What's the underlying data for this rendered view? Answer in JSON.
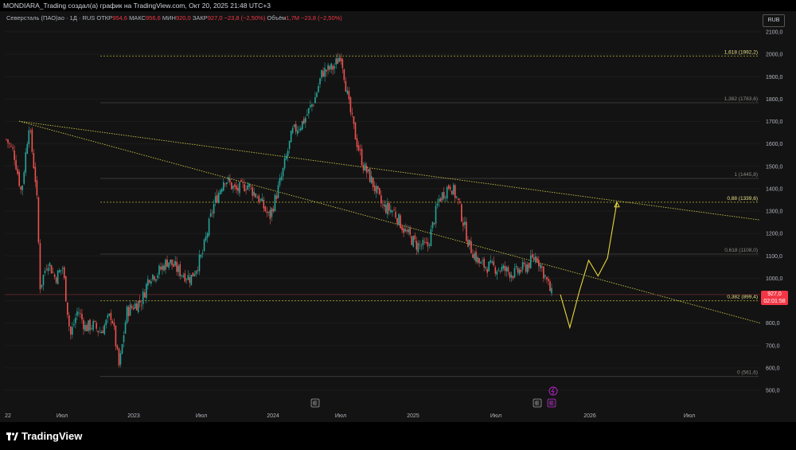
{
  "header": {
    "title": "MONDIARA_Trading создал(а) график на TradingView.com, Окт 20, 2025 21:48 UTC+3"
  },
  "legend": {
    "symbol": "Северсталь (ПАО)ао · 1Д · RUS",
    "open_label": "ОТКР",
    "open": "954,6",
    "high_label": "МАКС",
    "high": "956,6",
    "low_label": "МИН",
    "low": "920,0",
    "close_label": "ЗАКР",
    "close": "927,0",
    "change": "−23,8 (−2,50%)",
    "volume_label": "Объём",
    "volume": "1,7M",
    "volume_change": "−23,8 (−2,50%)"
  },
  "currency": "RUB",
  "price_tag": {
    "price": "927,0",
    "countdown": "02:01:58",
    "color": "#f23645"
  },
  "brand": "TradingView",
  "colors": {
    "background": "#131313",
    "up": "#26a69a",
    "down": "#ef5350",
    "fib_line": "#a4a27a",
    "trend": "#c8c24a",
    "forecast": "#e8d83a"
  },
  "chart_data": {
    "type": "candlestick",
    "price_axis": [
      "2100,0",
      "2000,0",
      "1900,0",
      "1800,0",
      "1700,0",
      "1600,0",
      "1500,0",
      "1400,0",
      "1300,0",
      "1200,0",
      "1100,0",
      "1000,0",
      "900,0",
      "800,0",
      "700,0",
      "600,0",
      "500,0"
    ],
    "time_axis": [
      "22",
      "Июл",
      "2023",
      "Июл",
      "2024",
      "Июл",
      "2025",
      "Июл",
      "2026",
      "Июл"
    ],
    "ylim": [
      470,
      2110
    ],
    "fib_levels": [
      {
        "ratio": "1,618",
        "price": 1992.2,
        "label": "1,618 (1992,2)",
        "highlight": true
      },
      {
        "ratio": "1,382",
        "price": 1783.6,
        "label": "1,382 (1783,6)",
        "highlight": false
      },
      {
        "ratio": "1",
        "price": 1445.8,
        "label": "1 (1445,8)",
        "highlight": false
      },
      {
        "ratio": "0,88",
        "price": 1339.6,
        "label": "0,88 (1339,6)",
        "highlight": true
      },
      {
        "ratio": "0,618",
        "price": 1108.0,
        "label": "0,618 (1108,0)",
        "highlight": false
      },
      {
        "ratio": "0,382",
        "price": 899.4,
        "label": "0,382 (899,4)",
        "highlight": true
      },
      {
        "ratio": "0",
        "price": 561.6,
        "label": "0 (561,6)",
        "highlight": false
      }
    ],
    "last_price": 927.0,
    "path": [
      [
        0,
        1620
      ],
      [
        0.01,
        1560
      ],
      [
        0.02,
        1380
      ],
      [
        0.03,
        1690
      ],
      [
        0.04,
        1400
      ],
      [
        0.045,
        960
      ],
      [
        0.055,
        1080
      ],
      [
        0.065,
        1000
      ],
      [
        0.075,
        1050
      ],
      [
        0.085,
        740
      ],
      [
        0.095,
        860
      ],
      [
        0.105,
        780
      ],
      [
        0.115,
        790
      ],
      [
        0.125,
        760
      ],
      [
        0.14,
        840
      ],
      [
        0.15,
        600
      ],
      [
        0.16,
        850
      ],
      [
        0.17,
        880
      ],
      [
        0.18,
        900
      ],
      [
        0.19,
        1010
      ],
      [
        0.2,
        1020
      ],
      [
        0.215,
        1080
      ],
      [
        0.23,
        1030
      ],
      [
        0.245,
        1000
      ],
      [
        0.26,
        1100
      ],
      [
        0.275,
        1320
      ],
      [
        0.29,
        1450
      ],
      [
        0.305,
        1390
      ],
      [
        0.32,
        1420
      ],
      [
        0.335,
        1360
      ],
      [
        0.35,
        1270
      ],
      [
        0.365,
        1440
      ],
      [
        0.38,
        1650
      ],
      [
        0.395,
        1700
      ],
      [
        0.41,
        1800
      ],
      [
        0.42,
        1920
      ],
      [
        0.435,
        1940
      ],
      [
        0.445,
        2000
      ],
      [
        0.455,
        1780
      ],
      [
        0.465,
        1620
      ],
      [
        0.475,
        1500
      ],
      [
        0.485,
        1440
      ],
      [
        0.5,
        1320
      ],
      [
        0.515,
        1300
      ],
      [
        0.53,
        1210
      ],
      [
        0.545,
        1150
      ],
      [
        0.56,
        1140
      ],
      [
        0.575,
        1350
      ],
      [
        0.59,
        1420
      ],
      [
        0.6,
        1350
      ],
      [
        0.615,
        1150
      ],
      [
        0.63,
        1060
      ],
      [
        0.645,
        1050
      ],
      [
        0.66,
        1040
      ],
      [
        0.675,
        1020
      ],
      [
        0.69,
        1050
      ],
      [
        0.705,
        1100
      ],
      [
        0.715,
        1020
      ],
      [
        0.725,
        927
      ]
    ],
    "trendlines": [
      {
        "name": "",
        "from": [
          1701,
          "2022-02"
        ],
        "to": [
          1260,
          "2026-12"
        ]
      },
      {
        "name": "",
        "from": [
          1701,
          "2022-02"
        ],
        "to": [
          800,
          "2026-12"
        ]
      }
    ],
    "forecast_path": [
      [
        927,
        0
      ],
      [
        780,
        1
      ],
      [
        940,
        2
      ],
      [
        1080,
        3
      ],
      [
        1010,
        4
      ],
      [
        1090,
        5
      ],
      [
        1340,
        6
      ]
    ]
  }
}
